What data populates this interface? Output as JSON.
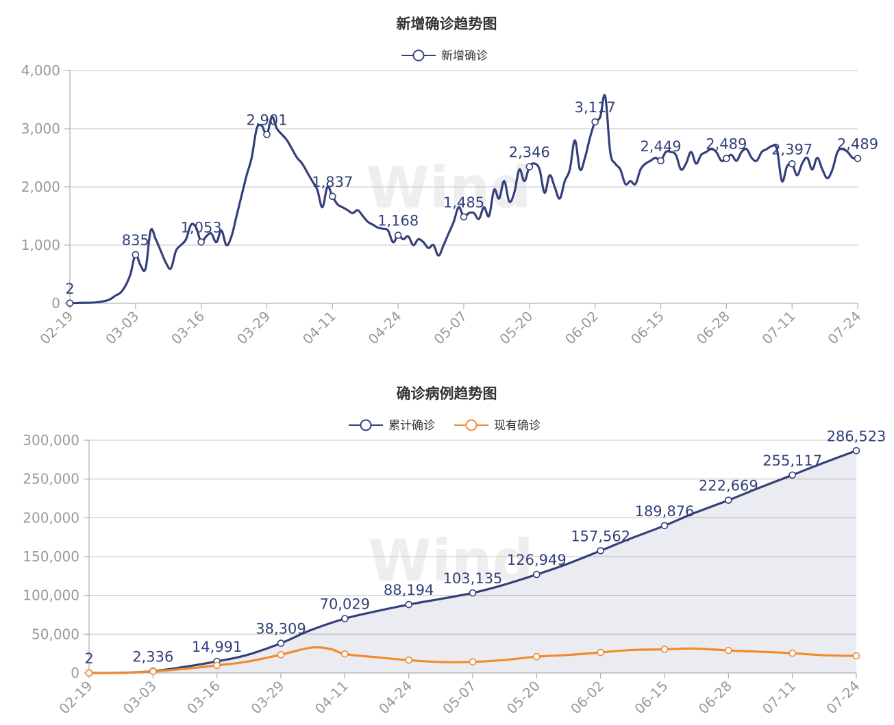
{
  "chart_data": [
    {
      "type": "line",
      "title": "新增确诊趋势图",
      "watermark": "Wind",
      "categories": [
        "02-19",
        "03-03",
        "03-16",
        "03-29",
        "04-11",
        "04-24",
        "05-07",
        "05-20",
        "06-02",
        "06-15",
        "06-28",
        "07-11",
        "07-24"
      ],
      "ylim": [
        0,
        4000
      ],
      "yticks": [
        0,
        1000,
        2000,
        3000,
        4000
      ],
      "legend": {
        "position": "top"
      },
      "grid": true,
      "series": [
        {
          "name": "新增确诊",
          "color": "#33407a",
          "points": [
            [
              "02-19",
              2
            ],
            [
              "02-21",
              8
            ],
            [
              "02-24",
              14
            ],
            [
              "02-26",
              40
            ],
            [
              "02-27",
              70
            ],
            [
              "02-28",
              130
            ],
            [
              "02-29",
              180
            ],
            [
              "03-01",
              300
            ],
            [
              "03-02",
              500
            ],
            [
              "03-03",
              835
            ],
            [
              "03-04",
              650
            ],
            [
              "03-05",
              600
            ],
            [
              "03-06",
              1250
            ],
            [
              "03-07",
              1100
            ],
            [
              "03-08",
              900
            ],
            [
              "03-09",
              700
            ],
            [
              "03-10",
              600
            ],
            [
              "03-11",
              900
            ],
            [
              "03-12",
              1000
            ],
            [
              "03-13",
              1100
            ],
            [
              "03-14",
              1350
            ],
            [
              "03-15",
              1300
            ],
            [
              "03-16",
              1053
            ],
            [
              "03-17",
              1150
            ],
            [
              "03-18",
              1200
            ],
            [
              "03-19",
              1050
            ],
            [
              "03-20",
              1250
            ],
            [
              "03-21",
              1000
            ],
            [
              "03-22",
              1150
            ],
            [
              "03-23",
              1500
            ],
            [
              "03-24",
              1850
            ],
            [
              "03-25",
              2200
            ],
            [
              "03-26",
              2500
            ],
            [
              "03-27",
              3000
            ],
            [
              "03-28",
              3050
            ],
            [
              "03-29",
              2901
            ],
            [
              "03-30",
              3200
            ],
            [
              "03-31",
              3000
            ],
            [
              "04-01",
              2900
            ],
            [
              "04-02",
              2800
            ],
            [
              "04-03",
              2650
            ],
            [
              "04-04",
              2500
            ],
            [
              "04-05",
              2400
            ],
            [
              "04-06",
              2250
            ],
            [
              "04-07",
              2100
            ],
            [
              "04-08",
              1950
            ],
            [
              "04-09",
              1650
            ],
            [
              "04-10",
              2000
            ],
            [
              "04-11",
              1837
            ],
            [
              "04-12",
              1700
            ],
            [
              "04-13",
              1650
            ],
            [
              "04-14",
              1600
            ],
            [
              "04-15",
              1550
            ],
            [
              "04-16",
              1600
            ],
            [
              "04-17",
              1500
            ],
            [
              "04-18",
              1400
            ],
            [
              "04-19",
              1350
            ],
            [
              "04-20",
              1300
            ],
            [
              "04-21",
              1280
            ],
            [
              "04-22",
              1250
            ],
            [
              "04-23",
              1050
            ],
            [
              "04-24",
              1168
            ],
            [
              "04-25",
              1100
            ],
            [
              "04-26",
              1150
            ],
            [
              "04-27",
              1000
            ],
            [
              "04-28",
              1100
            ],
            [
              "04-29",
              1050
            ],
            [
              "04-30",
              950
            ],
            [
              "05-01",
              1000
            ],
            [
              "05-02",
              820
            ],
            [
              "05-03",
              1000
            ],
            [
              "05-04",
              1200
            ],
            [
              "05-05",
              1400
            ],
            [
              "05-06",
              1650
            ],
            [
              "05-07",
              1485
            ],
            [
              "05-08",
              1550
            ],
            [
              "05-09",
              1550
            ],
            [
              "05-10",
              1450
            ],
            [
              "05-11",
              1650
            ],
            [
              "05-12",
              1500
            ],
            [
              "05-13",
              1950
            ],
            [
              "05-14",
              1800
            ],
            [
              "05-15",
              2100
            ],
            [
              "05-16",
              1750
            ],
            [
              "05-17",
              1900
            ],
            [
              "05-18",
              2300
            ],
            [
              "05-19",
              2100
            ],
            [
              "05-20",
              2346
            ],
            [
              "05-21",
              2400
            ],
            [
              "05-22",
              2300
            ],
            [
              "05-23",
              1900
            ],
            [
              "05-24",
              2200
            ],
            [
              "05-25",
              2000
            ],
            [
              "05-26",
              1800
            ],
            [
              "05-27",
              2100
            ],
            [
              "05-28",
              2300
            ],
            [
              "05-29",
              2800
            ],
            [
              "05-30",
              2300
            ],
            [
              "05-31",
              2500
            ],
            [
              "06-01",
              2850
            ],
            [
              "06-02",
              3117
            ],
            [
              "06-03",
              3200
            ],
            [
              "06-04",
              3560
            ],
            [
              "06-05",
              2600
            ],
            [
              "06-06",
              2400
            ],
            [
              "06-07",
              2300
            ],
            [
              "06-08",
              2050
            ],
            [
              "06-09",
              2100
            ],
            [
              "06-10",
              2050
            ],
            [
              "06-11",
              2300
            ],
            [
              "06-12",
              2400
            ],
            [
              "06-13",
              2450
            ],
            [
              "06-14",
              2500
            ],
            [
              "06-15",
              2449
            ],
            [
              "06-16",
              2600
            ],
            [
              "06-17",
              2600
            ],
            [
              "06-18",
              2550
            ],
            [
              "06-19",
              2300
            ],
            [
              "06-20",
              2400
            ],
            [
              "06-21",
              2600
            ],
            [
              "06-22",
              2400
            ],
            [
              "06-23",
              2550
            ],
            [
              "06-24",
              2600
            ],
            [
              "06-25",
              2650
            ],
            [
              "06-26",
              2600
            ],
            [
              "06-27",
              2450
            ],
            [
              "06-28",
              2489
            ],
            [
              "06-29",
              2550
            ],
            [
              "06-30",
              2450
            ],
            [
              "07-01",
              2600
            ],
            [
              "07-02",
              2650
            ],
            [
              "07-03",
              2500
            ],
            [
              "07-04",
              2450
            ],
            [
              "07-05",
              2600
            ],
            [
              "07-06",
              2650
            ],
            [
              "07-07",
              2700
            ],
            [
              "07-08",
              2650
            ],
            [
              "07-09",
              2100
            ],
            [
              "07-10",
              2350
            ],
            [
              "07-11",
              2397
            ],
            [
              "07-12",
              2200
            ],
            [
              "07-13",
              2400
            ],
            [
              "07-14",
              2500
            ],
            [
              "07-15",
              2300
            ],
            [
              "07-16",
              2500
            ],
            [
              "07-17",
              2300
            ],
            [
              "07-18",
              2150
            ],
            [
              "07-19",
              2300
            ],
            [
              "07-20",
              2600
            ],
            [
              "07-21",
              2650
            ],
            [
              "07-22",
              2600
            ],
            [
              "07-23",
              2500
            ],
            [
              "07-24",
              2489
            ]
          ],
          "labels": [
            [
              "02-19",
              2
            ],
            [
              "03-03",
              835
            ],
            [
              "03-16",
              1053
            ],
            [
              "03-29",
              2901
            ],
            [
              "04-11",
              1837
            ],
            [
              "04-24",
              1168
            ],
            [
              "05-07",
              1485
            ],
            [
              "05-20",
              2346
            ],
            [
              "06-02",
              3117
            ],
            [
              "06-15",
              2449
            ],
            [
              "06-28",
              2489
            ],
            [
              "07-11",
              2397
            ],
            [
              "07-24",
              2489
            ]
          ],
          "label_texts": [
            "2",
            "835",
            "1,053",
            "2,901",
            "1,837",
            "1,168",
            "1,485",
            "2,346",
            "3,117",
            "2,449",
            "2,489",
            "2,397",
            "2,489"
          ]
        }
      ]
    },
    {
      "type": "area",
      "title": "确诊病例趋势图",
      "watermark": "Wind",
      "categories": [
        "02-19",
        "03-03",
        "03-16",
        "03-29",
        "04-11",
        "04-24",
        "05-07",
        "05-20",
        "06-02",
        "06-15",
        "06-28",
        "07-11",
        "07-24"
      ],
      "ylim": [
        0,
        300000
      ],
      "yticks": [
        0,
        50000,
        100000,
        150000,
        200000,
        250000,
        300000
      ],
      "legend": {
        "position": "top"
      },
      "grid": true,
      "series": [
        {
          "name": "累计确诊",
          "color": "#33407a",
          "fill": "rgba(51,64,122,0.10)",
          "points": [
            [
              "02-19",
              2
            ],
            [
              "02-26",
              300
            ],
            [
              "03-03",
              2336
            ],
            [
              "03-09",
              7500
            ],
            [
              "03-16",
              14991
            ],
            [
              "03-22",
              23000
            ],
            [
              "03-29",
              38309
            ],
            [
              "04-04",
              55000
            ],
            [
              "04-11",
              70029
            ],
            [
              "04-17",
              79000
            ],
            [
              "04-24",
              88194
            ],
            [
              "05-01",
              96000
            ],
            [
              "05-07",
              103135
            ],
            [
              "05-13",
              113000
            ],
            [
              "05-20",
              126949
            ],
            [
              "05-26",
              140000
            ],
            [
              "06-02",
              157562
            ],
            [
              "06-08",
              173000
            ],
            [
              "06-15",
              189876
            ],
            [
              "06-21",
              206000
            ],
            [
              "06-28",
              222669
            ],
            [
              "07-04",
              238000
            ],
            [
              "07-11",
              255117
            ],
            [
              "07-17",
              270000
            ],
            [
              "07-24",
              286523
            ]
          ],
          "label_texts": [
            "2",
            "2,336",
            "14,991",
            "38,309",
            "70,029",
            "88,194",
            "103,135",
            "126,949",
            "157,562",
            "189,876",
            "222,669",
            "255,117",
            "286,523"
          ]
        },
        {
          "name": "现有确诊",
          "color": "#f28a2a",
          "points": [
            [
              "02-19",
              2
            ],
            [
              "02-26",
              100
            ],
            [
              "03-03",
              2000
            ],
            [
              "03-09",
              5000
            ],
            [
              "03-16",
              9800
            ],
            [
              "03-22",
              14500
            ],
            [
              "03-29",
              23500
            ],
            [
              "04-04",
              32500
            ],
            [
              "04-08",
              31000
            ],
            [
              "04-11",
              24500
            ],
            [
              "04-17",
              20500
            ],
            [
              "04-24",
              16500
            ],
            [
              "05-01",
              14000
            ],
            [
              "05-07",
              14300
            ],
            [
              "05-13",
              16500
            ],
            [
              "05-20",
              21000
            ],
            [
              "05-26",
              23000
            ],
            [
              "06-02",
              26500
            ],
            [
              "06-08",
              29500
            ],
            [
              "06-15",
              30500
            ],
            [
              "06-21",
              31500
            ],
            [
              "06-28",
              29000
            ],
            [
              "07-04",
              27500
            ],
            [
              "07-11",
              25500
            ],
            [
              "07-17",
              23000
            ],
            [
              "07-24",
              22000
            ]
          ]
        }
      ]
    }
  ]
}
